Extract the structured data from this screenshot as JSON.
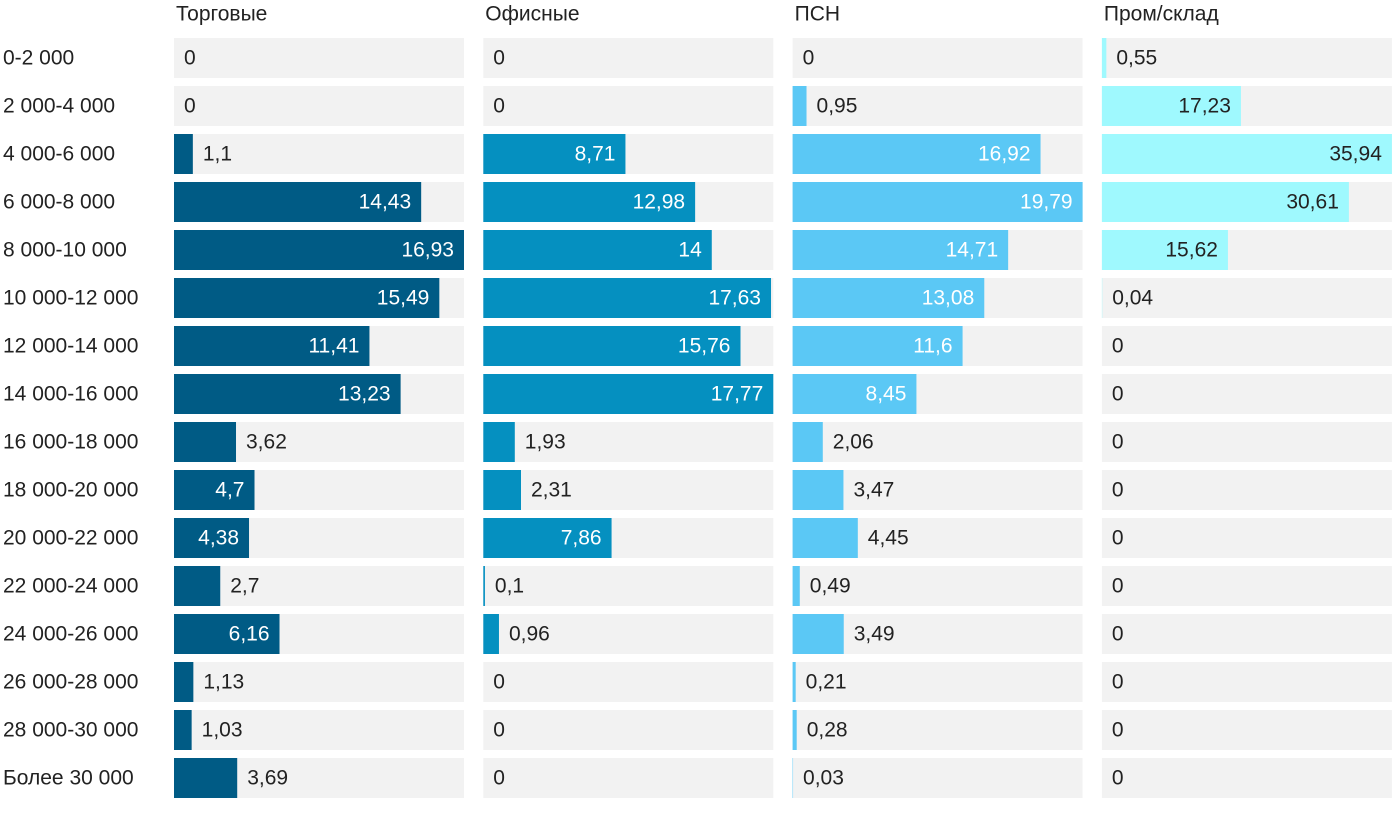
{
  "chart_data": {
    "type": "bar",
    "categories": [
      "0-2 000",
      "2 000-4 000",
      "4 000-6 000",
      "6 000-8 000",
      "8 000-10 000",
      "10 000-12 000",
      "12 000-14 000",
      "14 000-16 000",
      "16 000-18 000",
      "18 000-20 000",
      "20 000-22 000",
      "22 000-24 000",
      "24 000-26 000",
      "26 000-28 000",
      "28 000-30 000",
      "Более 30 000"
    ],
    "series": [
      {
        "name": "Торговые",
        "color": "#005b85",
        "xlim": [
          0,
          16.93
        ],
        "values": [
          0,
          0,
          1.1,
          14.43,
          16.93,
          15.49,
          11.41,
          13.23,
          3.62,
          4.7,
          4.38,
          2.7,
          6.16,
          1.13,
          1.03,
          3.69
        ],
        "value_labels": [
          "0",
          "0",
          "1,1",
          "14,43",
          "16,93",
          "15,49",
          "11,41",
          "13,23",
          "3,62",
          "4,7",
          "4,38",
          "2,7",
          "6,16",
          "1,13",
          "1,03",
          "3,69"
        ]
      },
      {
        "name": "Офисные",
        "color": "#0590c0",
        "xlim": [
          0,
          17.77
        ],
        "values": [
          0,
          0,
          8.71,
          12.98,
          14,
          17.63,
          15.76,
          17.77,
          1.93,
          2.31,
          7.86,
          0.1,
          0.96,
          0,
          0,
          0
        ],
        "value_labels": [
          "0",
          "0",
          "8,71",
          "12,98",
          "14",
          "17,63",
          "15,76",
          "17,77",
          "1,93",
          "2,31",
          "7,86",
          "0,1",
          "0,96",
          "0",
          "0",
          "0"
        ]
      },
      {
        "name": "ПСН",
        "color": "#5bc8f5",
        "xlim": [
          0,
          19.79
        ],
        "values": [
          0,
          0.95,
          16.92,
          19.79,
          14.71,
          13.08,
          11.6,
          8.45,
          2.06,
          3.47,
          4.45,
          0.49,
          3.49,
          0.21,
          0.28,
          0.03
        ],
        "value_labels": [
          "0",
          "0,95",
          "16,92",
          "19,79",
          "14,71",
          "13,08",
          "11,6",
          "8,45",
          "2,06",
          "3,47",
          "4,45",
          "0,49",
          "3,49",
          "0,21",
          "0,28",
          "0,03"
        ]
      },
      {
        "name": "Пром/склад",
        "color": "#9ff9fe",
        "xlim": [
          0,
          35.94
        ],
        "values": [
          0.55,
          17.23,
          35.94,
          30.61,
          15.62,
          0.04,
          0,
          0,
          0,
          0,
          0,
          0,
          0,
          0,
          0,
          0
        ],
        "value_labels": [
          "0,55",
          "17,23",
          "35,94",
          "30,61",
          "15,62",
          "0,04",
          "0",
          "0",
          "0",
          "0",
          "0",
          "0",
          "0",
          "0",
          "0",
          "0"
        ]
      }
    ]
  }
}
